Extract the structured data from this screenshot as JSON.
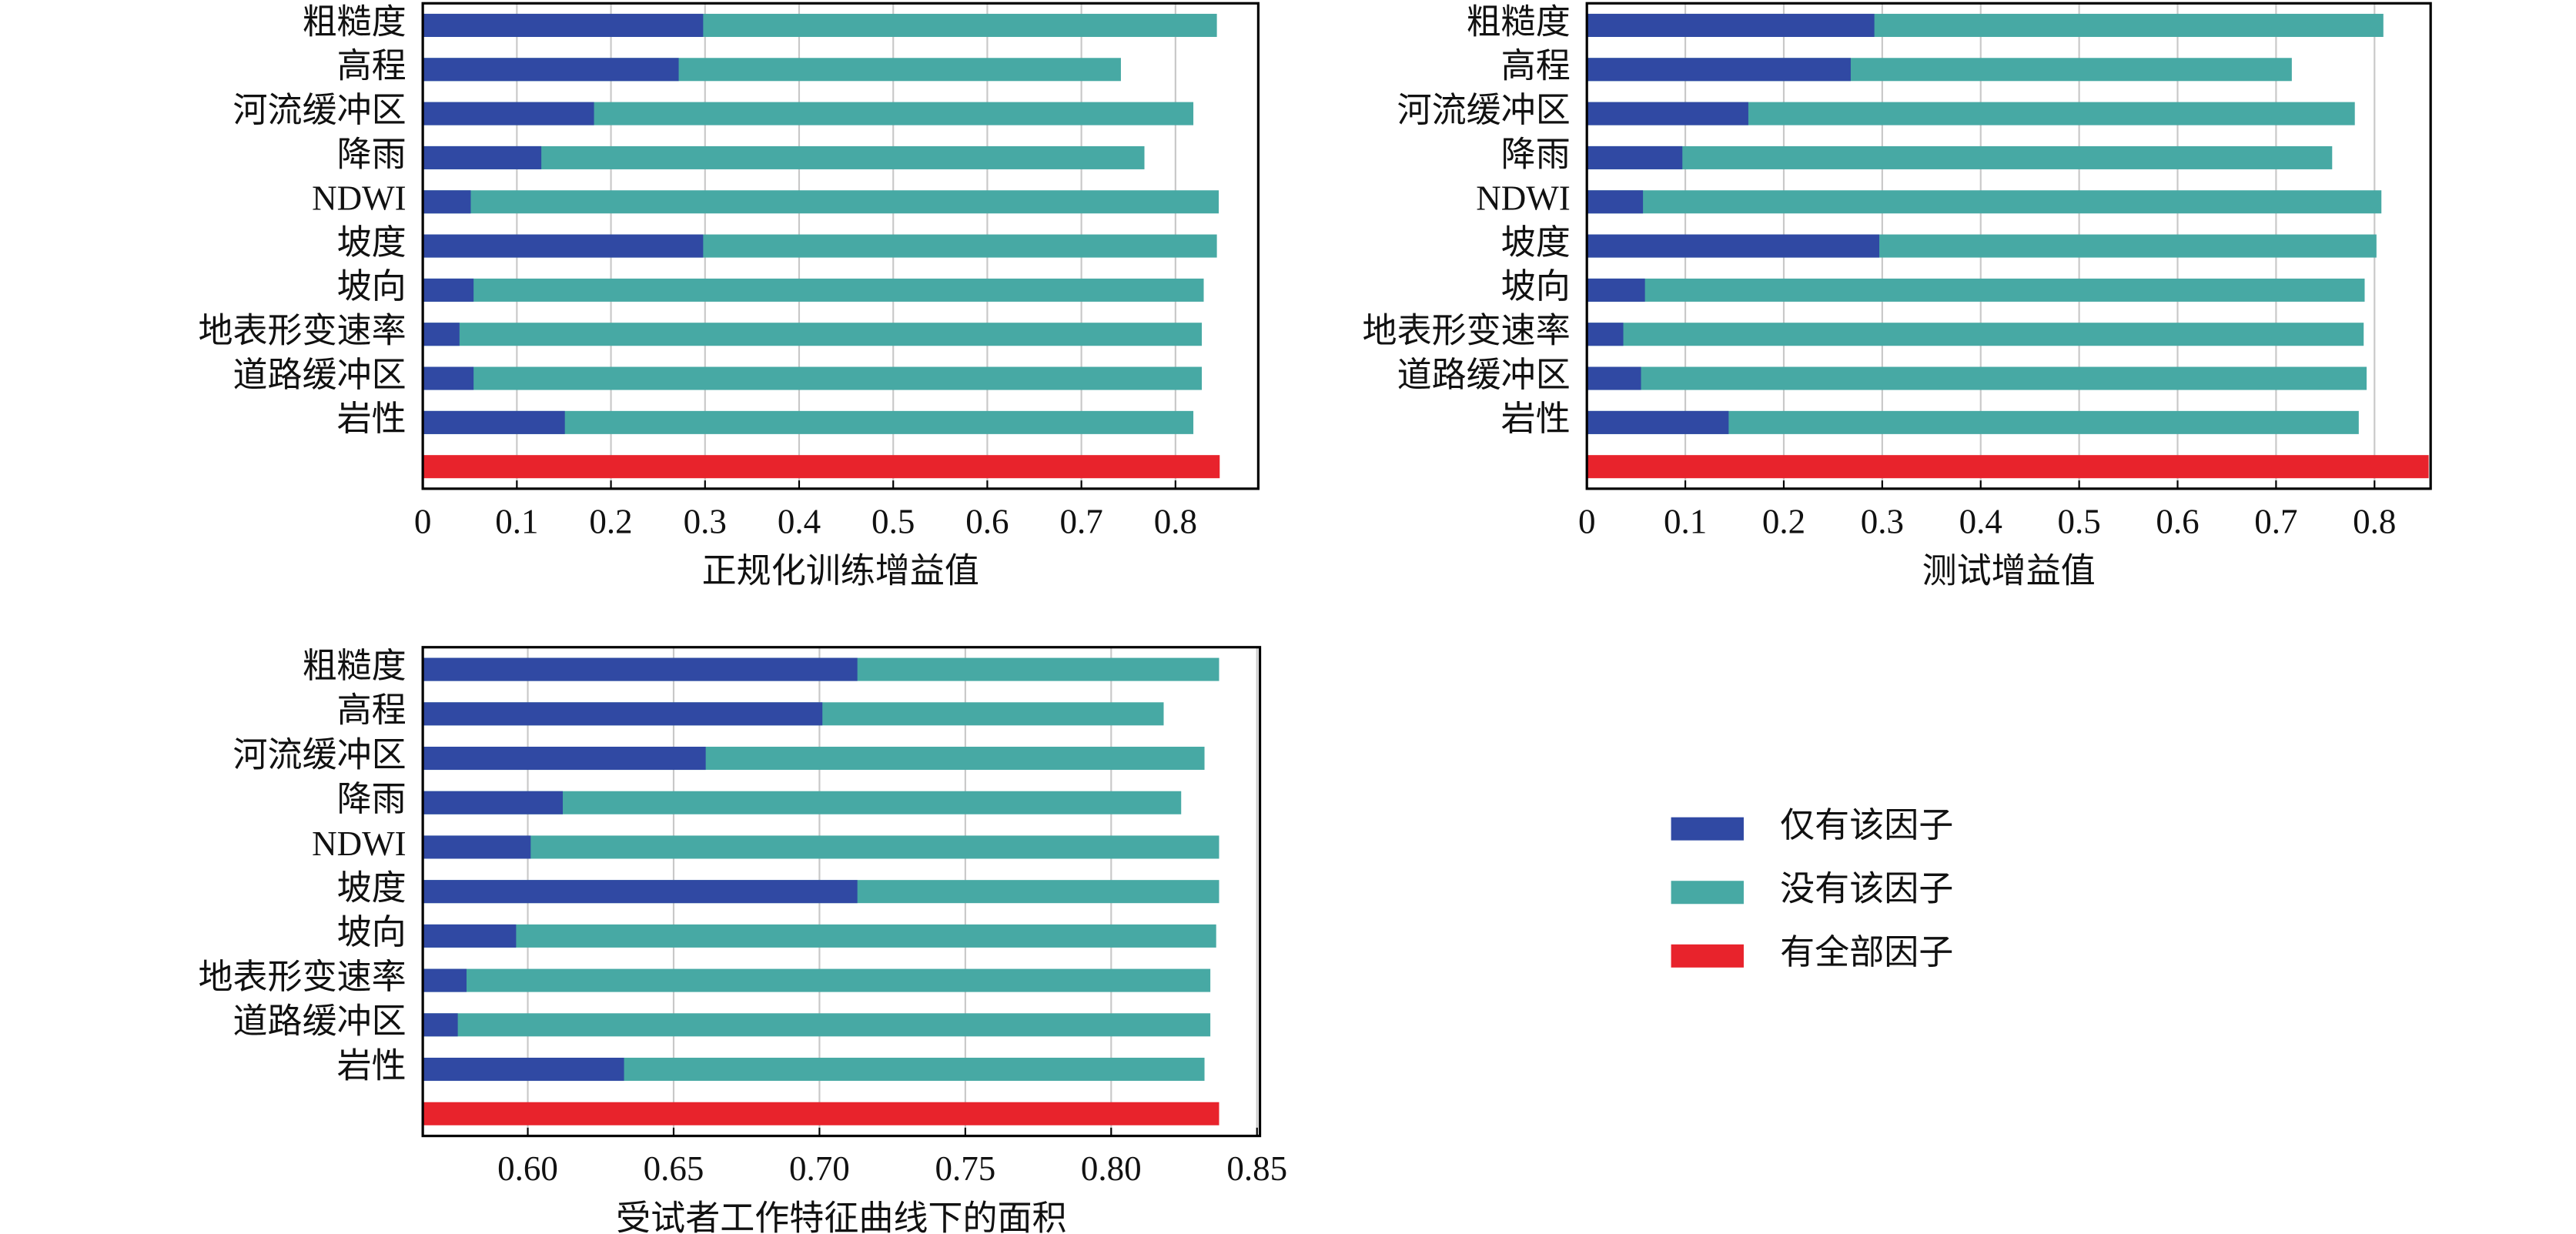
{
  "chart_data": [
    {
      "type": "barh",
      "xlabel": "正规化训练增益值",
      "categories": [
        "粗糙度",
        "高程",
        "河流缓冲区",
        "降雨",
        "NDWI",
        "坡度",
        "坡向",
        "地表形变速率",
        "道路缓冲区",
        "岩性",
        null
      ],
      "series": [
        {
          "name": "没有该因子",
          "color": "#47a9a4",
          "values": [
            0.844,
            0.742,
            0.819,
            0.767,
            0.846,
            0.844,
            0.83,
            0.828,
            0.828,
            0.819,
            null
          ]
        },
        {
          "name": "仅有该因子",
          "color": "#3049a3",
          "values": [
            0.298,
            0.272,
            0.182,
            0.126,
            0.051,
            0.298,
            0.054,
            0.039,
            0.054,
            0.151,
            null
          ]
        },
        {
          "name": "有全部因子",
          "color": "#e8232c",
          "values": [
            null,
            null,
            null,
            null,
            null,
            null,
            null,
            null,
            null,
            null,
            0.847
          ]
        }
      ],
      "xlim": [
        0,
        0.888
      ],
      "xticks": [
        0,
        0.1,
        0.2,
        0.3,
        0.4,
        0.5,
        0.6,
        0.7,
        0.8
      ],
      "grid": true
    },
    {
      "type": "barh",
      "xlabel": "测试增益值",
      "categories": [
        "粗糙度",
        "高程",
        "河流缓冲区",
        "降雨",
        "NDWI",
        "坡度",
        "坡向",
        "地表形变速率",
        "道路缓冲区",
        "岩性",
        null
      ],
      "series": [
        {
          "name": "没有该因子",
          "color": "#47a9a4",
          "values": [
            0.809,
            0.716,
            0.78,
            0.757,
            0.807,
            0.802,
            0.79,
            0.789,
            0.792,
            0.784,
            null
          ]
        },
        {
          "name": "仅有该因子",
          "color": "#3049a3",
          "values": [
            0.292,
            0.268,
            0.164,
            0.097,
            0.057,
            0.297,
            0.059,
            0.037,
            0.055,
            0.144,
            null
          ]
        },
        {
          "name": "有全部因子",
          "color": "#e8232c",
          "values": [
            null,
            null,
            null,
            null,
            null,
            null,
            null,
            null,
            null,
            null,
            0.855
          ]
        }
      ],
      "xlim": [
        0,
        0.857
      ],
      "xticks": [
        0,
        0.1,
        0.2,
        0.3,
        0.4,
        0.5,
        0.6,
        0.7,
        0.8
      ],
      "grid": true
    },
    {
      "type": "barh",
      "xlabel": "受试者工作特征曲线下的面积",
      "categories": [
        "粗糙度",
        "高程",
        "河流缓冲区",
        "降雨",
        "NDWI",
        "坡度",
        "坡向",
        "地表形变速率",
        "道路缓冲区",
        "岩性",
        null
      ],
      "series": [
        {
          "name": "没有该因子",
          "color": "#47a9a4",
          "values": [
            0.837,
            0.818,
            0.832,
            0.824,
            0.837,
            0.837,
            0.836,
            0.834,
            0.834,
            0.832,
            null
          ]
        },
        {
          "name": "仅有该因子",
          "color": "#3049a3",
          "values": [
            0.713,
            0.701,
            0.661,
            0.612,
            0.601,
            0.713,
            0.596,
            0.579,
            0.576,
            0.633,
            null
          ]
        },
        {
          "name": "有全部因子",
          "color": "#e8232c",
          "values": [
            null,
            null,
            null,
            null,
            null,
            null,
            null,
            null,
            null,
            null,
            0.837
          ]
        }
      ],
      "xlim": [
        0.564,
        0.851
      ],
      "xticks": [
        {
          "value": 0.6,
          "label": "0.60"
        },
        {
          "value": 0.65,
          "label": "0.65"
        },
        {
          "value": 0.7,
          "label": "0.70"
        },
        {
          "value": 0.75,
          "label": "0.75"
        },
        {
          "value": 0.8,
          "label": "0.80"
        },
        {
          "value": 0.85,
          "label": "0.85"
        }
      ],
      "grid": true
    }
  ]
}
